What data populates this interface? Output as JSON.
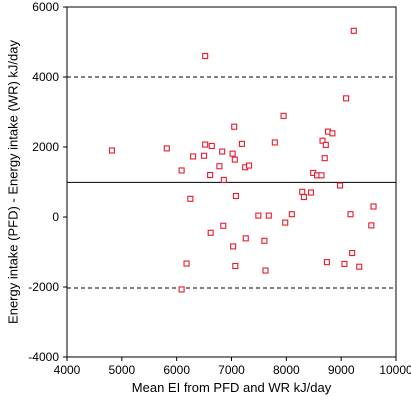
{
  "chart_data": {
    "type": "scatter",
    "title": "",
    "xlabel": "Mean EI from PFD and WR kJ/day",
    "ylabel": "Energy intake (PFD) - Energy intake (WR) kJ/day",
    "xlim": [
      4000,
      10000
    ],
    "ylim": [
      -4000,
      6000
    ],
    "xticks": [
      4000,
      5000,
      6000,
      7000,
      8000,
      9000,
      10000
    ],
    "yticks": [
      -4000,
      -2000,
      0,
      2000,
      4000,
      6000
    ],
    "xtick_labels": [
      "4000",
      "5000",
      "6000",
      "7000",
      "8000",
      "9000",
      "10000"
    ],
    "ytick_labels": [
      "-4000",
      "-2000",
      "0",
      "2000",
      "4000",
      "6000"
    ],
    "grid": false,
    "marker": "hollow-square",
    "marker_color": "#e8192c",
    "reference_lines": [
      {
        "y": 990,
        "style": "solid",
        "meaning": "mean difference"
      },
      {
        "y": 4000,
        "style": "dashed",
        "meaning": "upper limit of agreement"
      },
      {
        "y": -2030,
        "style": "dashed",
        "meaning": "lower limit of agreement"
      }
    ],
    "points": [
      {
        "x": 4820,
        "y": 1900
      },
      {
        "x": 5820,
        "y": 1960
      },
      {
        "x": 6090,
        "y": 1330
      },
      {
        "x": 6090,
        "y": -2070
      },
      {
        "x": 6180,
        "y": -1330
      },
      {
        "x": 6250,
        "y": 520
      },
      {
        "x": 6300,
        "y": 1730
      },
      {
        "x": 6500,
        "y": 1750
      },
      {
        "x": 6520,
        "y": 2070
      },
      {
        "x": 6520,
        "y": 4600
      },
      {
        "x": 6610,
        "y": 1200
      },
      {
        "x": 6620,
        "y": -450
      },
      {
        "x": 6640,
        "y": 2030
      },
      {
        "x": 6780,
        "y": 1450
      },
      {
        "x": 6830,
        "y": 1870
      },
      {
        "x": 6850,
        "y": -250
      },
      {
        "x": 6860,
        "y": 1060
      },
      {
        "x": 7020,
        "y": 1810
      },
      {
        "x": 7030,
        "y": -840
      },
      {
        "x": 7050,
        "y": 2580
      },
      {
        "x": 7060,
        "y": 1640
      },
      {
        "x": 7070,
        "y": -1400
      },
      {
        "x": 7080,
        "y": 600
      },
      {
        "x": 7190,
        "y": 2090
      },
      {
        "x": 7250,
        "y": 1420
      },
      {
        "x": 7260,
        "y": -610
      },
      {
        "x": 7320,
        "y": 1470
      },
      {
        "x": 7490,
        "y": 40
      },
      {
        "x": 7600,
        "y": -680
      },
      {
        "x": 7620,
        "y": -1530
      },
      {
        "x": 7680,
        "y": 40
      },
      {
        "x": 7790,
        "y": 2130
      },
      {
        "x": 7950,
        "y": 2890
      },
      {
        "x": 7980,
        "y": -160
      },
      {
        "x": 8100,
        "y": 80
      },
      {
        "x": 8290,
        "y": 720
      },
      {
        "x": 8320,
        "y": 570
      },
      {
        "x": 8450,
        "y": 700
      },
      {
        "x": 8490,
        "y": 1260
      },
      {
        "x": 8560,
        "y": 1190
      },
      {
        "x": 8640,
        "y": 1190
      },
      {
        "x": 8660,
        "y": 2180
      },
      {
        "x": 8700,
        "y": 1680
      },
      {
        "x": 8720,
        "y": 2060
      },
      {
        "x": 8740,
        "y": -1290
      },
      {
        "x": 8760,
        "y": 2440
      },
      {
        "x": 8840,
        "y": 2390
      },
      {
        "x": 8980,
        "y": 900
      },
      {
        "x": 9060,
        "y": -1340
      },
      {
        "x": 9090,
        "y": 3390
      },
      {
        "x": 9170,
        "y": 80
      },
      {
        "x": 9200,
        "y": -1030
      },
      {
        "x": 9230,
        "y": 5320
      },
      {
        "x": 9330,
        "y": -1420
      },
      {
        "x": 9550,
        "y": -240
      },
      {
        "x": 9590,
        "y": 300
      }
    ]
  }
}
